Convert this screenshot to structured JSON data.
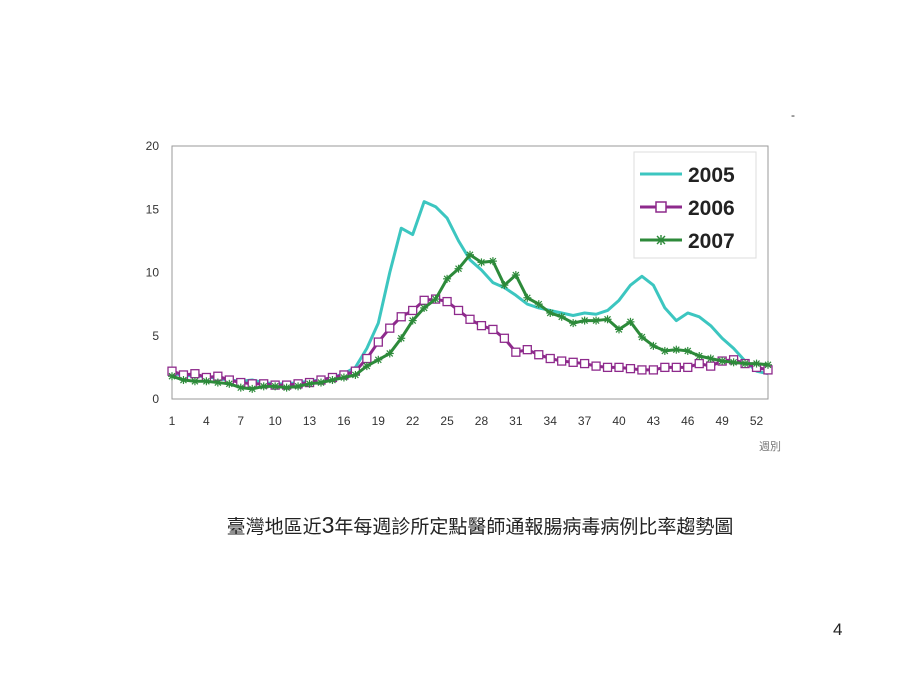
{
  "slide": {
    "caption_before": "臺灣地區近",
    "caption_number": "3",
    "caption_after": "年每週診所定點醫師通報腸病毒病例比率趨勢圖",
    "page_number": "4",
    "corner_mark": "-"
  },
  "chart_data": {
    "type": "line",
    "title": "",
    "xlabel": "週別",
    "ylabel": "",
    "x": [
      1,
      2,
      3,
      4,
      5,
      6,
      7,
      8,
      9,
      10,
      11,
      12,
      13,
      14,
      15,
      16,
      17,
      18,
      19,
      20,
      21,
      22,
      23,
      24,
      25,
      26,
      27,
      28,
      29,
      30,
      31,
      32,
      33,
      34,
      35,
      36,
      37,
      38,
      39,
      40,
      41,
      42,
      43,
      44,
      45,
      46,
      47,
      48,
      49,
      50,
      51,
      52,
      53
    ],
    "xlim": [
      1,
      53
    ],
    "ylim": [
      0,
      20
    ],
    "xticks": [
      1,
      4,
      7,
      10,
      13,
      16,
      19,
      22,
      25,
      28,
      31,
      34,
      37,
      40,
      43,
      46,
      49,
      52
    ],
    "yticks": [
      0,
      5,
      10,
      15,
      20
    ],
    "grid": false,
    "legend_position": "top-right",
    "series": [
      {
        "name": "2005",
        "color": "#3cc6c0",
        "marker": "none",
        "values": [
          2.0,
          1.9,
          1.8,
          1.8,
          1.6,
          1.5,
          1.4,
          1.5,
          1.3,
          1.2,
          1.2,
          1.3,
          1.4,
          1.5,
          1.7,
          2.0,
          2.5,
          4.0,
          6.0,
          10.0,
          13.5,
          13.0,
          15.6,
          15.2,
          14.3,
          12.5,
          11.0,
          10.2,
          9.2,
          8.8,
          8.2,
          7.5,
          7.2,
          7.0,
          6.8,
          6.6,
          6.8,
          6.7,
          7.0,
          7.8,
          9.0,
          9.7,
          9.0,
          7.2,
          6.2,
          6.8,
          6.5,
          5.8,
          4.8,
          4.0,
          3.0,
          2.2,
          2.0
        ]
      },
      {
        "name": "2006",
        "color": "#8e2a8c",
        "marker": "square",
        "values": [
          2.2,
          1.9,
          2.0,
          1.7,
          1.8,
          1.5,
          1.3,
          1.2,
          1.2,
          1.1,
          1.1,
          1.2,
          1.3,
          1.5,
          1.7,
          1.9,
          2.2,
          3.2,
          4.5,
          5.6,
          6.5,
          7.0,
          7.8,
          7.9,
          7.7,
          7.0,
          6.3,
          5.8,
          5.5,
          4.8,
          3.7,
          3.9,
          3.5,
          3.2,
          3.0,
          2.9,
          2.8,
          2.6,
          2.5,
          2.5,
          2.4,
          2.3,
          2.3,
          2.5,
          2.5,
          2.5,
          2.8,
          2.6,
          3.0,
          3.1,
          2.8,
          2.5,
          2.3
        ]
      },
      {
        "name": "2007",
        "color": "#2d8a3a",
        "marker": "star",
        "values": [
          1.8,
          1.5,
          1.4,
          1.4,
          1.3,
          1.2,
          0.9,
          0.8,
          1.0,
          1.0,
          0.9,
          1.0,
          1.2,
          1.3,
          1.5,
          1.7,
          1.9,
          2.6,
          3.1,
          3.6,
          4.8,
          6.2,
          7.2,
          7.9,
          9.5,
          10.3,
          11.4,
          10.8,
          10.9,
          9.0,
          9.8,
          8.0,
          7.5,
          6.8,
          6.5,
          6.0,
          6.2,
          6.2,
          6.3,
          5.5,
          6.1,
          4.9,
          4.2,
          3.8,
          3.9,
          3.8,
          3.4,
          3.2,
          3.0,
          2.9,
          2.8,
          2.8,
          2.7
        ]
      }
    ]
  }
}
